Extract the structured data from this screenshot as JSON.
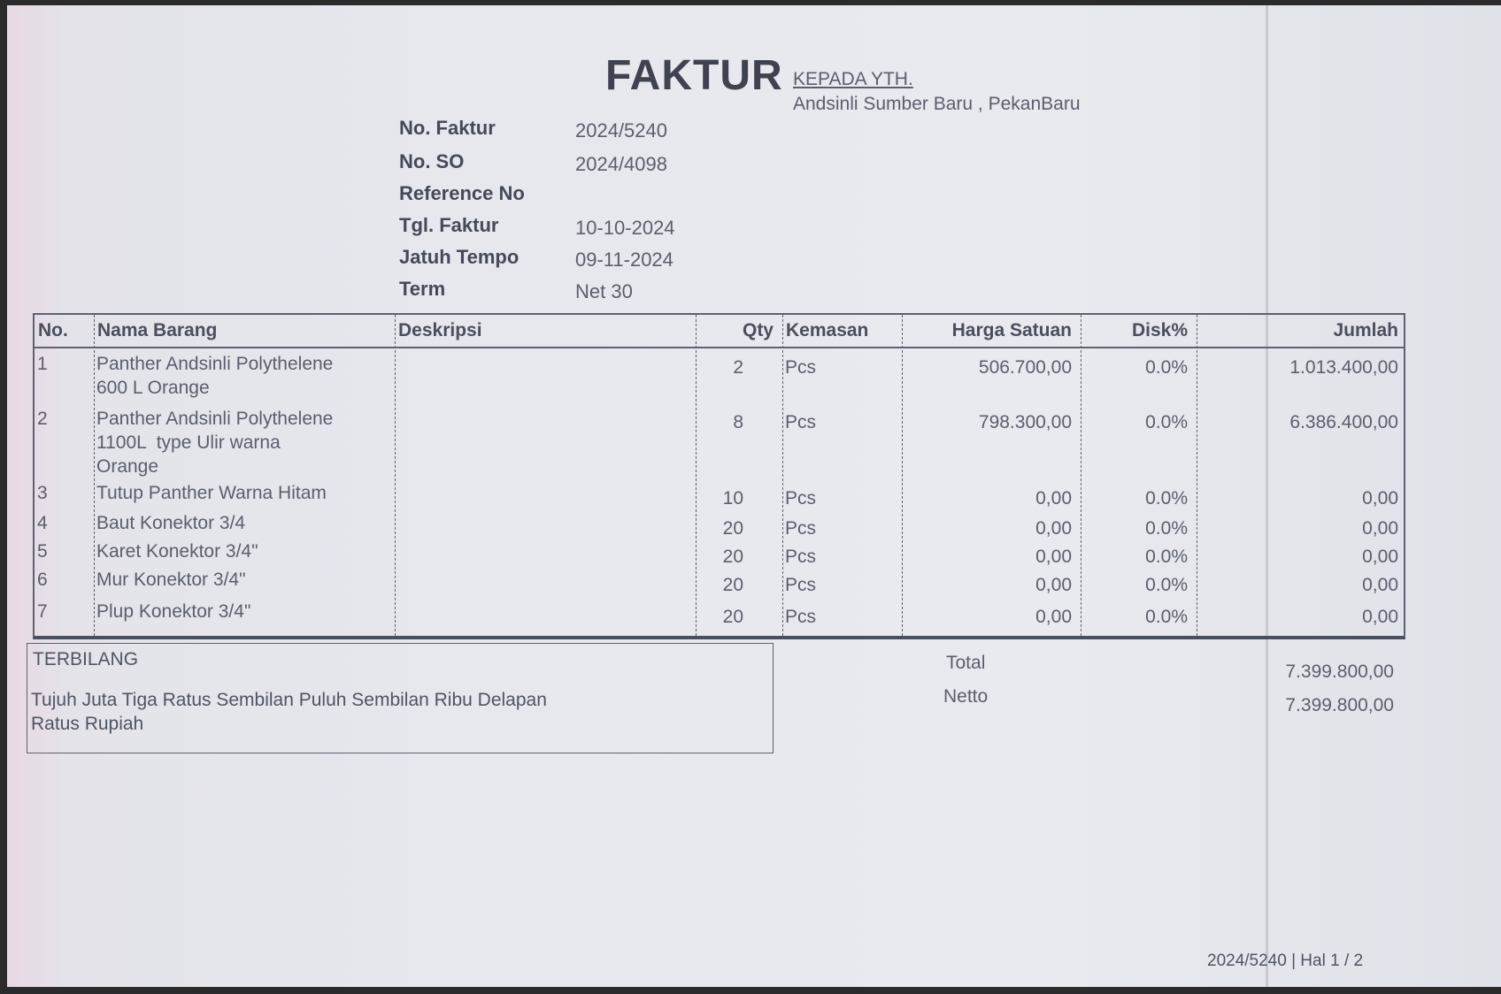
{
  "document": {
    "title": "FAKTUR",
    "recipient_label": "KEPADA YTH.",
    "recipient": "Andsinli Sumber Baru , PekanBaru",
    "fields": [
      {
        "label": "No. Faktur",
        "value": "2024/5240"
      },
      {
        "label": "No. SO",
        "value": "2024/4098"
      },
      {
        "label": "Reference No",
        "value": ""
      },
      {
        "label": "Tgl. Faktur",
        "value": "10-10-2024"
      },
      {
        "label": "Jatuh Tempo",
        "value": "09-11-2024"
      },
      {
        "label": "Term",
        "value": "Net 30"
      }
    ],
    "table": {
      "headers": [
        "No.",
        "Nama Barang",
        "Deskripsi",
        "Qty",
        "Kemasan",
        "Harga Satuan",
        "Disk%",
        "Jumlah"
      ],
      "rows": [
        {
          "no": "1",
          "name": "Panther Andsinli Polythelene\n600 L Orange",
          "desc": "",
          "qty": "2",
          "unit": "Pcs",
          "price": "506.700,00",
          "disc": "0.0%",
          "total": "1.013.400,00"
        },
        {
          "no": "2",
          "name": "Panther Andsinli Polythelene\n1100L  type Ulir warna\nOrange",
          "desc": "",
          "qty": "8",
          "unit": "Pcs",
          "price": "798.300,00",
          "disc": "0.0%",
          "total": "6.386.400,00"
        },
        {
          "no": "3",
          "name": "Tutup Panther Warna Hitam",
          "desc": "",
          "qty": "10",
          "unit": "Pcs",
          "price": "0,00",
          "disc": "0.0%",
          "total": "0,00"
        },
        {
          "no": "4",
          "name": "Baut Konektor 3/4",
          "desc": "",
          "qty": "20",
          "unit": "Pcs",
          "price": "0,00",
          "disc": "0.0%",
          "total": "0,00"
        },
        {
          "no": "5",
          "name": "Karet Konektor 3/4\"",
          "desc": "",
          "qty": "20",
          "unit": "Pcs",
          "price": "0,00",
          "disc": "0.0%",
          "total": "0,00"
        },
        {
          "no": "6",
          "name": "Mur Konektor 3/4\"",
          "desc": "",
          "qty": "20",
          "unit": "Pcs",
          "price": "0,00",
          "disc": "0.0%",
          "total": "0,00"
        },
        {
          "no": "7",
          "name": "Plup Konektor 3/4\"",
          "desc": "",
          "qty": "20",
          "unit": "Pcs",
          "price": "0,00",
          "disc": "0.0%",
          "total": "0,00"
        }
      ]
    },
    "terbilang_label": "TERBILANG",
    "terbilang": "Tujuh Juta Tiga Ratus Sembilan Puluh Sembilan Ribu Delapan\nRatus Rupiah",
    "total_label": "Total",
    "total": "7.399.800,00",
    "netto_label": "Netto",
    "netto": "7.399.800,00",
    "footer": "2024/5240 | Hal 1 / 2"
  }
}
